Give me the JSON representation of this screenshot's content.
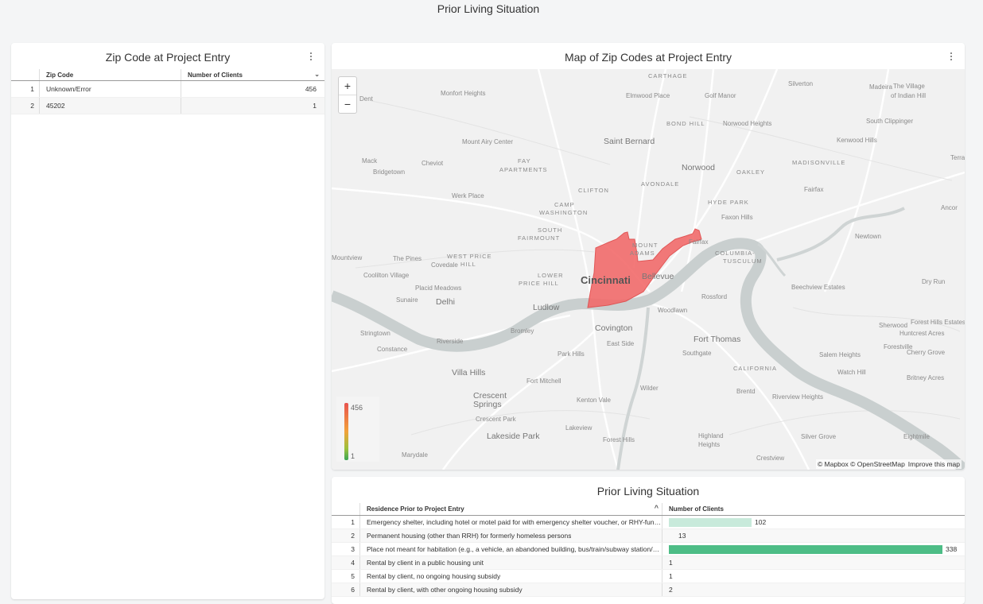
{
  "section_title": "Prior Living Situation",
  "zip_tile": {
    "title": "Zip Code at Project Entry",
    "columns": [
      "Zip Code",
      "Number of Clients"
    ],
    "rows": [
      {
        "idx": "1",
        "zip": "Unknown/Error",
        "count": "456"
      },
      {
        "idx": "2",
        "zip": "45202",
        "count": "1"
      }
    ]
  },
  "map_tile": {
    "title": "Map of Zip Codes at Project Entry",
    "zoom_in": "+",
    "zoom_out": "−",
    "legend": {
      "max": "456",
      "min": "1",
      "colors": [
        "#e8534f",
        "#f2a23a",
        "#9bc13d",
        "#3aa655"
      ]
    },
    "attribution": "© Mapbox © OpenStreetMap",
    "improve": "Improve this map",
    "highlight_color": "#f26b6b",
    "place_labels": [
      {
        "t": "CARTHAGE"
      },
      {
        "t": "Silverton"
      },
      {
        "t": "Madeira"
      },
      {
        "t": "The Village"
      },
      {
        "t": "of Indian Hill"
      },
      {
        "t": "Dent"
      },
      {
        "t": "Monfort Heights"
      },
      {
        "t": "Elmwood Place"
      },
      {
        "t": "Golf Manor"
      },
      {
        "t": "BOND HILL"
      },
      {
        "t": "Norwood Heights"
      },
      {
        "t": "South Clippinger"
      },
      {
        "t": "Mount Airy Center"
      },
      {
        "t": "Saint Bernard"
      },
      {
        "t": "Kenwood Hills"
      },
      {
        "t": "Mack"
      },
      {
        "t": "Cheviot"
      },
      {
        "t": "FAY"
      },
      {
        "t": "APARTMENTS"
      },
      {
        "t": "Norwood"
      },
      {
        "t": "OAKLEY"
      },
      {
        "t": "MADISONVILLE"
      },
      {
        "t": "Terrac"
      },
      {
        "t": "Bridgetown"
      },
      {
        "t": "CLIFTON"
      },
      {
        "t": "AVONDALE"
      },
      {
        "t": "Fairfax"
      },
      {
        "t": "Werk Place"
      },
      {
        "t": "CAMP"
      },
      {
        "t": "WASHINGTON"
      },
      {
        "t": "HYDE PARK"
      },
      {
        "t": "Faxon Hills"
      },
      {
        "t": "Ancor"
      },
      {
        "t": "SOUTH"
      },
      {
        "t": "FAIRMOUNT"
      },
      {
        "t": "Newtown"
      },
      {
        "t": "Covedale"
      },
      {
        "t": "MOUNT"
      },
      {
        "t": "ADAMS"
      },
      {
        "t": "Fairfax"
      },
      {
        "t": "COLUMBIA-"
      },
      {
        "t": "TUSCULUM"
      },
      {
        "t": "Mountview"
      },
      {
        "t": "The Pines"
      },
      {
        "t": "WEST PRICE"
      },
      {
        "t": "HILL"
      },
      {
        "t": "Coolilton Village"
      },
      {
        "t": "LOWER"
      },
      {
        "t": "PRICE HILL"
      },
      {
        "t": "Cincinnati"
      },
      {
        "t": "Bellevue"
      },
      {
        "t": "Dry Run"
      },
      {
        "t": "Placid Meadows"
      },
      {
        "t": "Beechview Estates"
      },
      {
        "t": "Sunaire"
      },
      {
        "t": "Delhi"
      },
      {
        "t": "Ludlow"
      },
      {
        "t": "Rossford"
      },
      {
        "t": "Woodlawn"
      },
      {
        "t": "Bromley"
      },
      {
        "t": "Covington"
      },
      {
        "t": "Sherwood"
      },
      {
        "t": "Forest Hills Estates"
      },
      {
        "t": "Huntcrest Acres"
      },
      {
        "t": "Stringtown"
      },
      {
        "t": "Riverside"
      },
      {
        "t": "Fort Thomas"
      },
      {
        "t": "East Side"
      },
      {
        "t": "Forestville"
      },
      {
        "t": "Constance"
      },
      {
        "t": "Park Hills"
      },
      {
        "t": "Southgate"
      },
      {
        "t": "Salem Heights"
      },
      {
        "t": "Cherry Grove"
      },
      {
        "t": "Villa Hills"
      },
      {
        "t": "CALIFORNIA"
      },
      {
        "t": "Watch Hill"
      },
      {
        "t": "Fort Mitchell"
      },
      {
        "t": "Britney Acres"
      },
      {
        "t": "Crescent"
      },
      {
        "t": "Springs"
      },
      {
        "t": "Wilder"
      },
      {
        "t": "Brentd"
      },
      {
        "t": "Riverview Heights"
      },
      {
        "t": "Kenton Vale"
      },
      {
        "t": "Crescent Park"
      },
      {
        "t": "Lakeview"
      },
      {
        "t": "Lakeside Park"
      },
      {
        "t": "Forest Hills"
      },
      {
        "t": "Highland"
      },
      {
        "t": "Heights"
      },
      {
        "t": "Silver Grove"
      },
      {
        "t": "Eightmile"
      },
      {
        "t": "Marydale"
      },
      {
        "t": "Crestview"
      }
    ]
  },
  "prior_tile": {
    "title": "Prior Living Situation",
    "columns": [
      "Residence Prior to Project Entry",
      "Number of Clients"
    ],
    "max_value": 338,
    "rows": [
      {
        "idx": "1",
        "residence": "Emergency shelter, including hotel or motel paid for with emergency shelter voucher, or RHY-funded Host Home shelter",
        "value": 102,
        "count": "102"
      },
      {
        "idx": "2",
        "residence": "Permanent housing (other than RRH) for formerly homeless persons",
        "value": 13,
        "count": "13"
      },
      {
        "idx": "3",
        "residence": "Place not meant for habitation (e.g., a vehicle, an abandoned building, bus/train/subway station/airport or anywhere outside)",
        "value": 338,
        "count": "338"
      },
      {
        "idx": "4",
        "residence": "Rental by client in a public housing unit",
        "value": 1,
        "count": "1"
      },
      {
        "idx": "5",
        "residence": "Rental by client, no ongoing housing subsidy",
        "value": 1,
        "count": "1"
      },
      {
        "idx": "6",
        "residence": "Rental by client, with other ongoing housing subsidy",
        "value": 2,
        "count": "2"
      }
    ]
  }
}
